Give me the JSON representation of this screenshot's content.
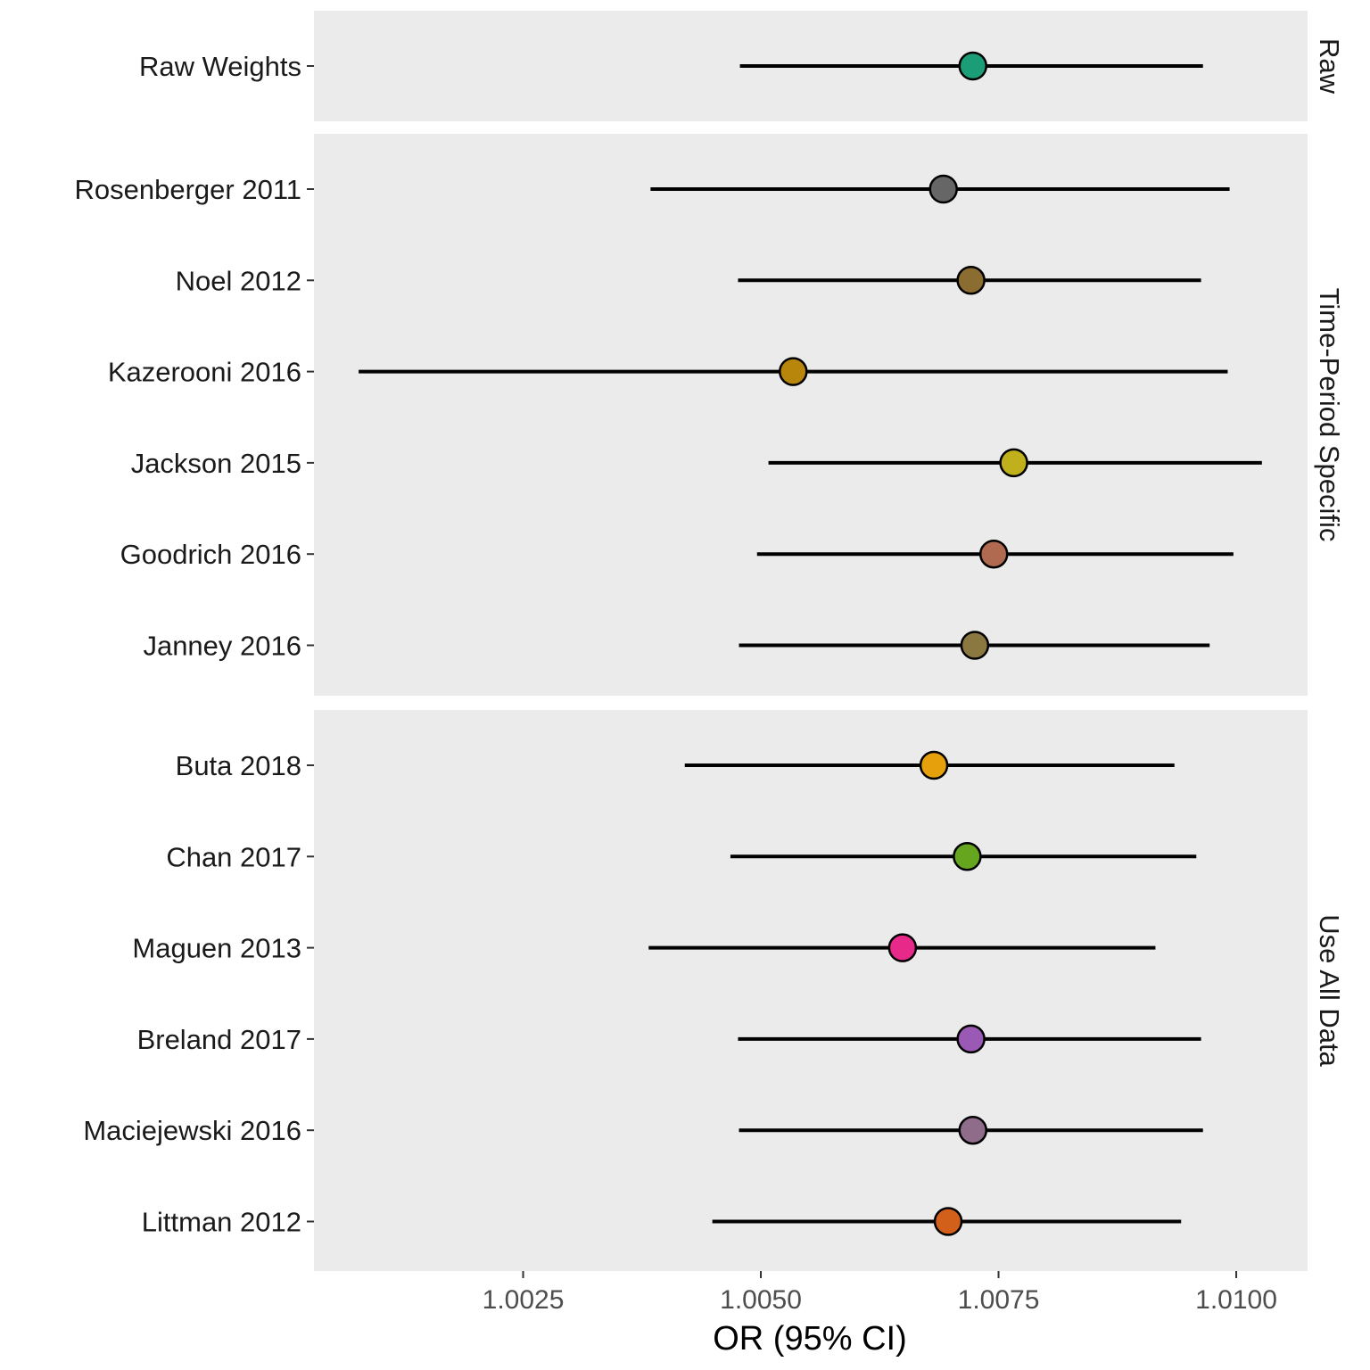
{
  "chart_data": {
    "type": "forest",
    "xlabel": "OR (95% CI)",
    "xlim": [
      1.0003,
      1.01075
    ],
    "x_ticks": [
      {
        "value": 1.0025,
        "label": "1.0025"
      },
      {
        "value": 1.005,
        "label": "1.0050"
      },
      {
        "value": 1.0075,
        "label": "1.0075"
      },
      {
        "value": 1.01,
        "label": "1.0100"
      }
    ],
    "panels": [
      {
        "label": "Raw",
        "rows": [
          {
            "name": "Raw Weights",
            "or": 1.00723,
            "lower": 1.00478,
            "upper": 1.00965,
            "color": "#1b9e77"
          }
        ]
      },
      {
        "label": "Time-Period Specific",
        "rows": [
          {
            "name": "Rosenberger 2011",
            "or": 1.00692,
            "lower": 1.00384,
            "upper": 1.00993,
            "color": "#666666"
          },
          {
            "name": "Noel 2012",
            "or": 1.00721,
            "lower": 1.00476,
            "upper": 1.00963,
            "color": "#8c6d31"
          },
          {
            "name": "Kazerooni 2016",
            "or": 1.00534,
            "lower": 1.00077,
            "upper": 1.00991,
            "color": "#b8860b"
          },
          {
            "name": "Jackson 2015",
            "or": 1.00766,
            "lower": 1.00508,
            "upper": 1.01027,
            "color": "#c0b01c"
          },
          {
            "name": "Goodrich 2016",
            "or": 1.00745,
            "lower": 1.00496,
            "upper": 1.00997,
            "color": "#b06a50"
          },
          {
            "name": "Janney 2016",
            "or": 1.00725,
            "lower": 1.00477,
            "upper": 1.00972,
            "color": "#8b7740"
          }
        ]
      },
      {
        "label": "Use All Data",
        "rows": [
          {
            "name": "Buta 2018",
            "or": 1.00682,
            "lower": 1.0042,
            "upper": 1.00935,
            "color": "#e6a00c"
          },
          {
            "name": "Chan 2017",
            "or": 1.00717,
            "lower": 1.00468,
            "upper": 1.00958,
            "color": "#66a61e"
          },
          {
            "name": "Maguen 2013",
            "or": 1.00649,
            "lower": 1.00382,
            "upper": 1.00915,
            "color": "#e7298a"
          },
          {
            "name": "Breland 2017",
            "or": 1.00721,
            "lower": 1.00476,
            "upper": 1.00963,
            "color": "#9b59b6"
          },
          {
            "name": "Maciejewski 2016",
            "or": 1.00723,
            "lower": 1.00477,
            "upper": 1.00965,
            "color": "#8e6c8a"
          },
          {
            "name": "Littman 2012",
            "or": 1.00697,
            "lower": 1.00449,
            "upper": 1.00942,
            "color": "#d2601a"
          }
        ]
      }
    ]
  }
}
